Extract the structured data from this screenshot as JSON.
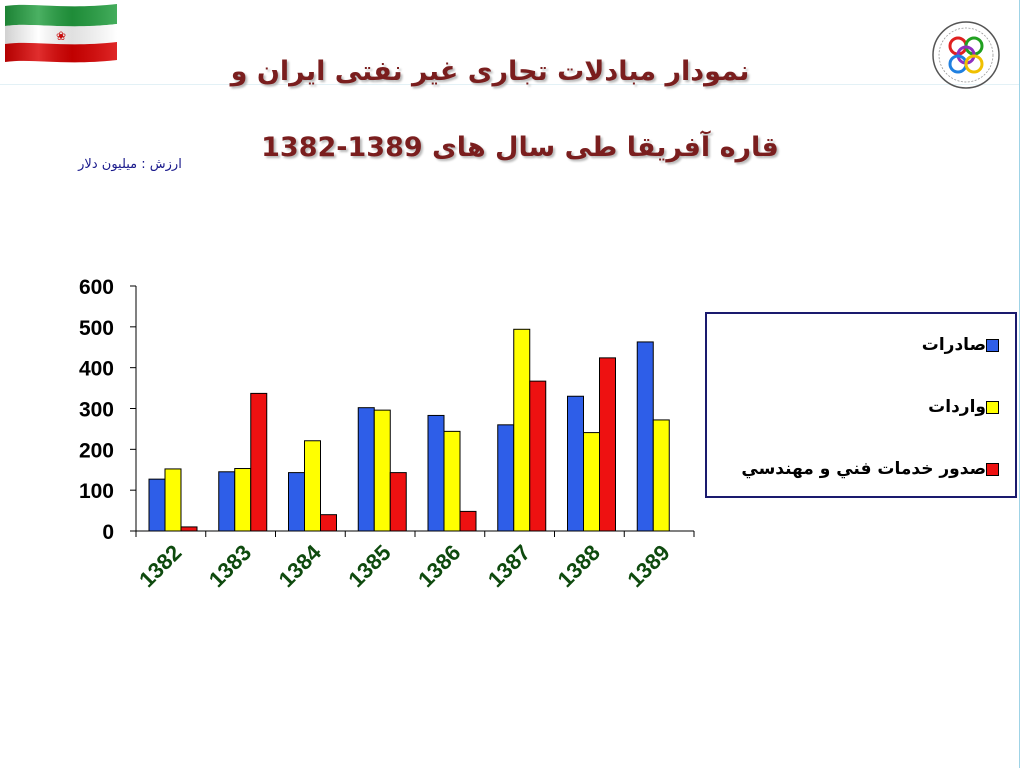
{
  "header": {
    "title_line1": "نمودار مبادلات تجاری غیر نفتی ایران و",
    "title_line2": "قاره آفریقا طی سال های 1389-1382",
    "unit_note": "ارزش : میلیون دلار"
  },
  "flag": {
    "colors": {
      "green": "#239f40",
      "white": "#ffffff",
      "red": "#da0000"
    }
  },
  "logo": {
    "icon": "organization-seal-icon"
  },
  "colors": {
    "exports": "#2e5ee8",
    "imports": "#ffff00",
    "services": "#ee1111",
    "axis": "#000000",
    "tick_label": "#0e4a0e"
  },
  "chart_data": {
    "type": "bar",
    "categories": [
      "1382",
      "1383",
      "1384",
      "1385",
      "1386",
      "1387",
      "1388",
      "1389"
    ],
    "series": [
      {
        "name": "صادرات",
        "values": [
          127,
          145,
          143,
          302,
          283,
          260,
          330,
          463
        ]
      },
      {
        "name": "واردات",
        "values": [
          152,
          153,
          221,
          296,
          244,
          494,
          241,
          272
        ]
      },
      {
        "name": "صدور خدمات فني و مهندسي",
        "values": [
          10,
          337,
          40,
          143,
          48,
          367,
          424,
          null
        ]
      }
    ],
    "yticks": [
      "0",
      "100",
      "200",
      "300",
      "400",
      "500",
      "600"
    ],
    "ylim": [
      0,
      600
    ],
    "grid": false,
    "legend_position": "right"
  }
}
